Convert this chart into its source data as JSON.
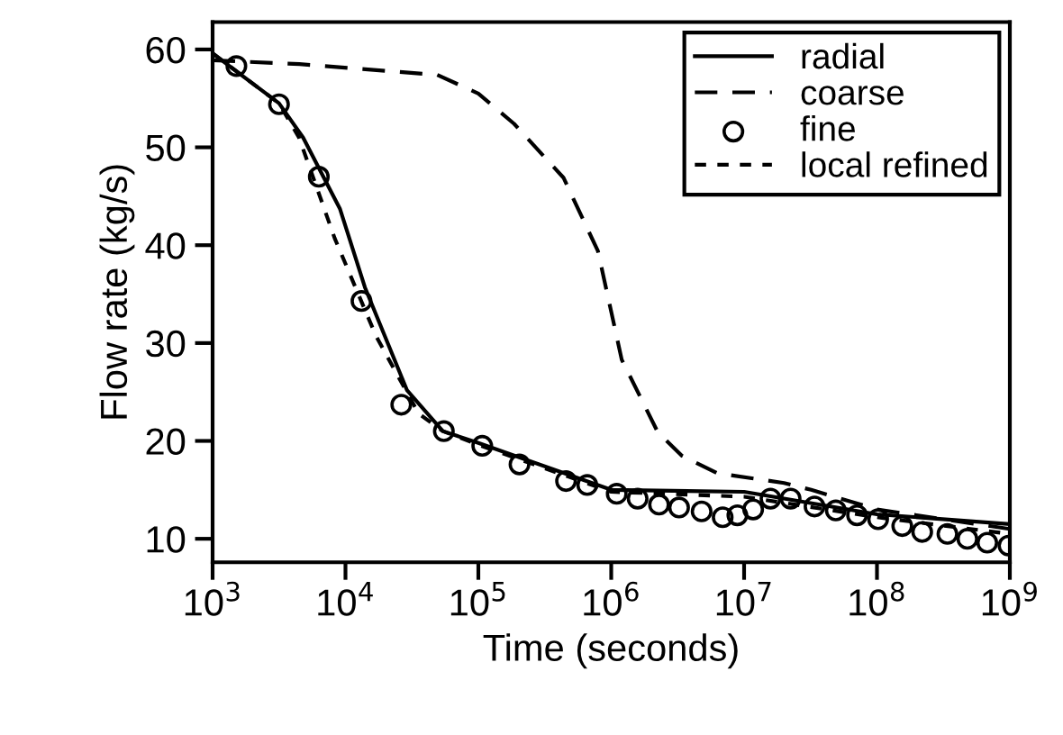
{
  "chart_data": {
    "type": "line",
    "xlabel": "Time (seconds)",
    "ylabel": "Flow rate (kg/s)",
    "log": "x",
    "xlim": [
      1000,
      1000000000
    ],
    "ylim": [
      7.6,
      62.8
    ],
    "xticks": [
      {
        "value": 1000,
        "label": "10$^{3}$"
      },
      {
        "value": 10000,
        "label": "10$^{4}$"
      },
      {
        "value": 100000,
        "label": "10$^{5}$"
      },
      {
        "value": 1000000,
        "label": "10$^{6}$"
      },
      {
        "value": 10000000,
        "label": "10$^{7}$"
      },
      {
        "value": 100000000,
        "label": "10$^{8}$"
      },
      {
        "value": 1000000000,
        "label": "10$^{9}$"
      }
    ],
    "yticks": [
      10,
      20,
      30,
      40,
      50,
      60
    ],
    "grid": false,
    "legend": "top right",
    "series": [
      {
        "name": "radial",
        "line_style": "solid",
        "marker": "none",
        "color": "#000000",
        "x": [
          1000,
          3160,
          4800,
          9100,
          14000,
          29000,
          54000,
          100000,
          1000000,
          10000000,
          100000000,
          1000000000
        ],
        "values": [
          59.6,
          54.5,
          51,
          43.7,
          35.7,
          25.2,
          21,
          19.8,
          15,
          14.8,
          12.5,
          11.5
        ]
      },
      {
        "name": "coarse",
        "line_style": "dashed",
        "marker": "none",
        "color": "#000000",
        "x": [
          1000,
          4500,
          49000,
          100000,
          186000,
          437000,
          794000,
          1200000,
          2240000,
          3390000,
          6300000,
          20000000,
          32000000,
          100000000,
          1000000000
        ],
        "values": [
          58.9,
          58.5,
          57.4,
          55.5,
          52.4,
          46.9,
          39.4,
          28.3,
          20.9,
          18.5,
          16.7,
          15.7,
          15,
          13,
          11
        ]
      },
      {
        "name": "fine",
        "type": "scatter",
        "marker": "circle",
        "color": "#000000",
        "x": [
          1510,
          3160,
          6300,
          13200,
          26300,
          55000,
          107000,
          204000,
          457000,
          660000,
          1100000,
          1580000,
          2290000,
          3240000,
          4790000,
          6900000,
          8900000,
          11700000,
          15800000,
          22400000,
          33900000,
          49000000,
          70800000,
          102000000,
          155000000,
          219000000,
          339000000,
          479000000,
          676000000,
          977000000
        ],
        "values": [
          58.3,
          54.4,
          47,
          34.3,
          23.7,
          21,
          19.5,
          17.6,
          15.9,
          15.5,
          14.6,
          14.1,
          13.5,
          13.2,
          12.8,
          12.2,
          12.4,
          13,
          14.1,
          14.1,
          13.3,
          12.9,
          12.4,
          12,
          11.3,
          10.7,
          10.5,
          10,
          9.6,
          9.3
        ]
      },
      {
        "name": "local refined",
        "line_style": "dotted",
        "marker": "none",
        "color": "#000000",
        "x": [
          1000,
          3160,
          4470,
          8300,
          17000,
          35500,
          54000,
          100000,
          1000000,
          10000000,
          100000000,
          1000000000
        ],
        "values": [
          59.6,
          54.5,
          51,
          40.7,
          30.7,
          22.8,
          21,
          19.6,
          14.8,
          14.3,
          12.2,
          10.5
        ]
      }
    ]
  }
}
